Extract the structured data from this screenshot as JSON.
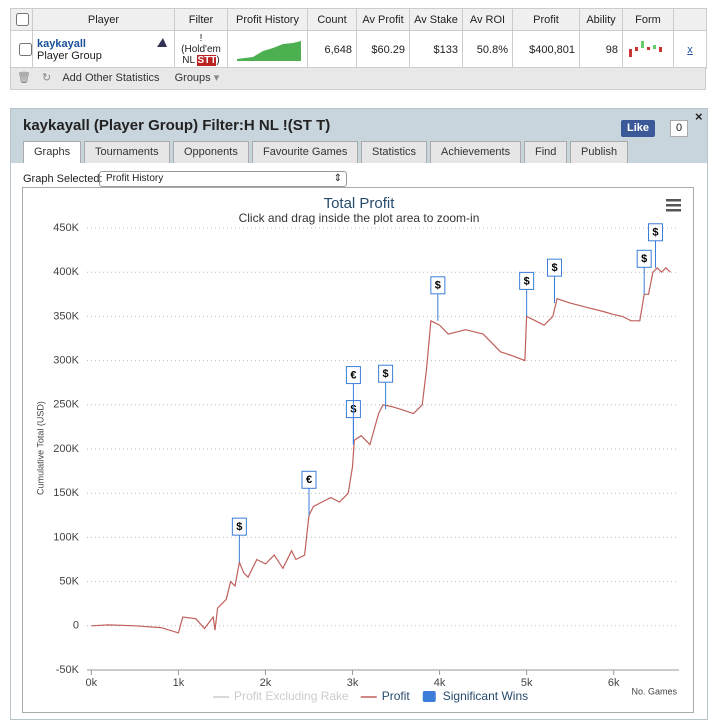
{
  "table": {
    "headers": [
      "Player",
      "Filter",
      "Profit History",
      "Count",
      "Av Profit",
      "Av Stake",
      "Av ROI",
      "Profit",
      "Ability",
      "Form"
    ],
    "row": {
      "player": "kaykayall",
      "group": "Player Group",
      "filter": [
        "!",
        "(Hold'em",
        "NL"
      ],
      "filter_badge": "STT",
      "filter_close": ")",
      "count": "6,648",
      "av_profit": "$60.29",
      "av_stake": "$133",
      "av_roi": "50.8%",
      "profit": "$400,801",
      "ability": "98",
      "remove": "x"
    }
  },
  "toolbar": {
    "add": "Add Other Statistics",
    "groups": "Groups"
  },
  "panel": {
    "title": "kaykayall (Player Group) Filter:H NL !(ST T)",
    "like": "Like",
    "like_count": "0",
    "tabs": [
      "Graphs",
      "Tournaments",
      "Opponents",
      "Favourite Games",
      "Statistics",
      "Achievements",
      "Find",
      "Publish"
    ],
    "graph_label": "Graph Selected:",
    "graph_selected": "Profit History"
  },
  "chart_data": {
    "type": "line",
    "title": "Total Profit",
    "subtitle": "Click and drag inside the plot area to zoom-in",
    "y_label": "Cumulative Total (USD)",
    "x_label": "No. Games",
    "grid": true,
    "xlim": [
      -50,
      6750
    ],
    "ylim": [
      -50000,
      450000
    ],
    "xticks": [
      {
        "value": 0,
        "label": "0k"
      },
      {
        "value": 1000,
        "label": "1k"
      },
      {
        "value": 2000,
        "label": "2k"
      },
      {
        "value": 3000,
        "label": "3k"
      },
      {
        "value": 4000,
        "label": "4k"
      },
      {
        "value": 5000,
        "label": "5k"
      },
      {
        "value": 6000,
        "label": "6k"
      }
    ],
    "yticks": [
      {
        "value": -50000,
        "label": "-50K"
      },
      0,
      {
        "value": 50000,
        "label": "50K"
      },
      {
        "value": 100000,
        "label": "100K"
      },
      {
        "value": 150000,
        "label": "150K"
      },
      {
        "value": 200000,
        "label": "200K"
      },
      {
        "value": 250000,
        "label": "250K"
      },
      {
        "value": 300000,
        "label": "300K"
      },
      {
        "value": 350000,
        "label": "350K"
      },
      {
        "value": 400000,
        "label": "400K"
      },
      {
        "value": 450000,
        "label": "450K"
      }
    ],
    "series": [
      {
        "name": "Profit Excluding Rake",
        "color": "#cccccc",
        "visible": false
      },
      {
        "name": "Profit",
        "color": "#c0605c",
        "visible": true,
        "x": [
          0,
          200,
          500,
          800,
          1000,
          1050,
          1200,
          1300,
          1400,
          1420,
          1450,
          1550,
          1600,
          1650,
          1700,
          1750,
          1800,
          1900,
          2000,
          2100,
          2200,
          2300,
          2350,
          2450,
          2500,
          2550,
          2650,
          2750,
          2850,
          2950,
          3000,
          3020,
          3100,
          3200,
          3300,
          3350,
          3450,
          3550,
          3700,
          3800,
          3850,
          3900,
          4000,
          4100,
          4300,
          4500,
          4700,
          4850,
          4980,
          5000,
          5100,
          5200,
          5300,
          5350,
          5500,
          5700,
          5900,
          6000,
          6100,
          6200,
          6300,
          6350,
          6400,
          6450,
          6500,
          6550,
          6600,
          6650
        ],
        "values": [
          0,
          1000,
          0,
          -2000,
          -8000,
          10000,
          8000,
          -3000,
          10000,
          -5000,
          20000,
          30000,
          50000,
          45000,
          72000,
          60000,
          55000,
          75000,
          70000,
          80000,
          65000,
          85000,
          75000,
          80000,
          125000,
          135000,
          140000,
          145000,
          140000,
          150000,
          180000,
          210000,
          215000,
          205000,
          240000,
          250000,
          248000,
          245000,
          240000,
          250000,
          290000,
          345000,
          340000,
          330000,
          335000,
          330000,
          310000,
          305000,
          300000,
          350000,
          345000,
          340000,
          350000,
          370000,
          365000,
          360000,
          355000,
          352000,
          350000,
          345000,
          345000,
          375000,
          375000,
          400000,
          405000,
          400000,
          405000,
          400000
        ]
      }
    ],
    "flags": {
      "name": "Significant Wins",
      "color": "#3b7dd8",
      "visible": true,
      "points": [
        {
          "x": 1700,
          "y": 72000,
          "title": "$"
        },
        {
          "x": 2500,
          "y": 125000,
          "title": "€"
        },
        {
          "x": 3010,
          "y": 205000,
          "title": "$"
        },
        {
          "x": 3010,
          "y": 205000,
          "title": "€"
        },
        {
          "x": 3380,
          "y": 245000,
          "title": "$"
        },
        {
          "x": 3980,
          "y": 345000,
          "title": "$"
        },
        {
          "x": 5000,
          "y": 350000,
          "title": "$"
        },
        {
          "x": 5320,
          "y": 365000,
          "title": "$"
        },
        {
          "x": 6350,
          "y": 375000,
          "title": "$"
        },
        {
          "x": 6480,
          "y": 405000,
          "title": "$"
        }
      ]
    }
  }
}
